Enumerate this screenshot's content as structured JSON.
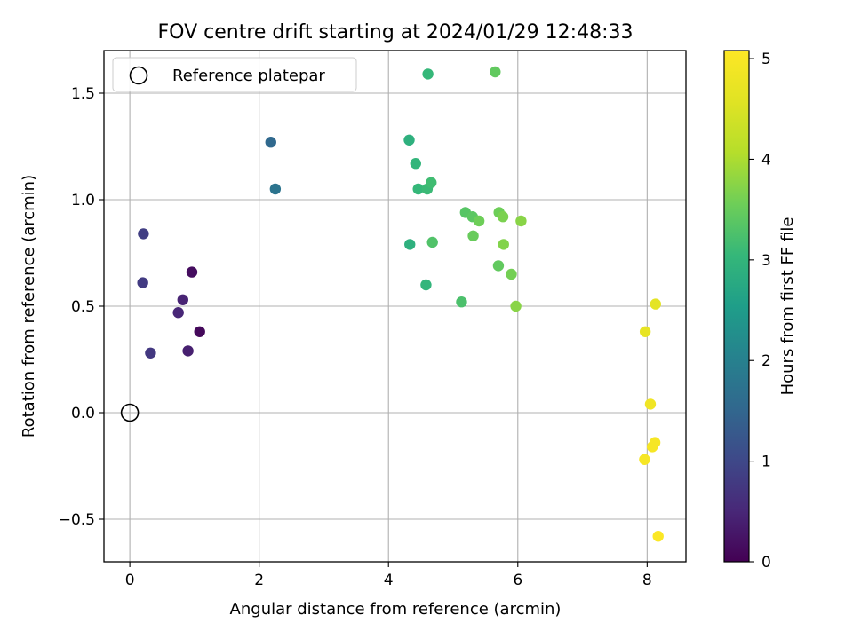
{
  "chart_data": {
    "type": "scatter",
    "title": "FOV centre drift starting at 2024/01/29 12:48:33",
    "xlabel": "Angular distance from reference (arcmin)",
    "ylabel": "Rotation from reference (arcmin)",
    "xlim": [
      -0.4,
      8.6
    ],
    "ylim": [
      -0.7,
      1.7
    ],
    "xticks": [
      0,
      2,
      4,
      6,
      8
    ],
    "xtick_labels": [
      "0",
      "2",
      "4",
      "6",
      "8"
    ],
    "yticks": [
      -0.5,
      0.0,
      0.5,
      1.0,
      1.5
    ],
    "ytick_labels": [
      "−0.5",
      "0.0",
      "0.5",
      "1.0",
      "1.5"
    ],
    "grid": true,
    "legend": {
      "position": "top-left",
      "entries": [
        "Reference platepar"
      ]
    },
    "colormap": "viridis",
    "colorbar": {
      "label": "Hours from first FF file",
      "range": [
        0,
        5.08
      ],
      "ticks": [
        0,
        1,
        2,
        3,
        4,
        5
      ],
      "tick_labels": [
        "0",
        "1",
        "2",
        "3",
        "4",
        "5"
      ]
    },
    "reference": {
      "x": 0,
      "y": 0
    },
    "points": [
      {
        "x": 0.21,
        "y": 0.84,
        "hours": 0.85
      },
      {
        "x": 0.2,
        "y": 0.61,
        "hours": 0.8
      },
      {
        "x": 0.32,
        "y": 0.28,
        "hours": 0.75
      },
      {
        "x": 0.75,
        "y": 0.47,
        "hours": 0.5
      },
      {
        "x": 0.82,
        "y": 0.53,
        "hours": 0.45
      },
      {
        "x": 0.9,
        "y": 0.29,
        "hours": 0.4
      },
      {
        "x": 0.96,
        "y": 0.66,
        "hours": 0.15
      },
      {
        "x": 1.08,
        "y": 0.38,
        "hours": 0.1
      },
      {
        "x": 2.18,
        "y": 1.27,
        "hours": 1.55
      },
      {
        "x": 2.25,
        "y": 1.05,
        "hours": 1.75
      },
      {
        "x": 4.32,
        "y": 1.28,
        "hours": 2.9
      },
      {
        "x": 4.33,
        "y": 0.79,
        "hours": 2.9
      },
      {
        "x": 4.42,
        "y": 1.17,
        "hours": 3.0
      },
      {
        "x": 4.46,
        "y": 1.05,
        "hours": 3.05
      },
      {
        "x": 4.58,
        "y": 0.6,
        "hours": 3.0
      },
      {
        "x": 4.6,
        "y": 1.05,
        "hours": 3.1
      },
      {
        "x": 4.61,
        "y": 1.59,
        "hours": 3.05
      },
      {
        "x": 4.66,
        "y": 1.08,
        "hours": 3.15
      },
      {
        "x": 4.68,
        "y": 0.8,
        "hours": 3.3
      },
      {
        "x": 5.13,
        "y": 0.52,
        "hours": 3.25
      },
      {
        "x": 5.19,
        "y": 0.94,
        "hours": 3.35
      },
      {
        "x": 5.3,
        "y": 0.92,
        "hours": 3.4
      },
      {
        "x": 5.31,
        "y": 0.83,
        "hours": 3.5
      },
      {
        "x": 5.4,
        "y": 0.9,
        "hours": 3.55
      },
      {
        "x": 5.65,
        "y": 1.6,
        "hours": 3.45
      },
      {
        "x": 5.7,
        "y": 0.69,
        "hours": 3.45
      },
      {
        "x": 5.71,
        "y": 0.94,
        "hours": 3.55
      },
      {
        "x": 5.77,
        "y": 0.92,
        "hours": 3.65
      },
      {
        "x": 5.78,
        "y": 0.79,
        "hours": 3.7
      },
      {
        "x": 5.9,
        "y": 0.65,
        "hours": 3.6
      },
      {
        "x": 5.97,
        "y": 0.5,
        "hours": 3.75
      },
      {
        "x": 6.05,
        "y": 0.9,
        "hours": 3.75
      },
      {
        "x": 7.97,
        "y": 0.38,
        "hours": 4.7
      },
      {
        "x": 8.13,
        "y": 0.51,
        "hours": 4.65
      },
      {
        "x": 8.05,
        "y": 0.04,
        "hours": 4.85
      },
      {
        "x": 8.08,
        "y": -0.16,
        "hours": 4.95
      },
      {
        "x": 8.12,
        "y": -0.14,
        "hours": 4.95
      },
      {
        "x": 7.96,
        "y": -0.22,
        "hours": 4.95
      },
      {
        "x": 8.17,
        "y": -0.58,
        "hours": 5.05
      }
    ]
  }
}
